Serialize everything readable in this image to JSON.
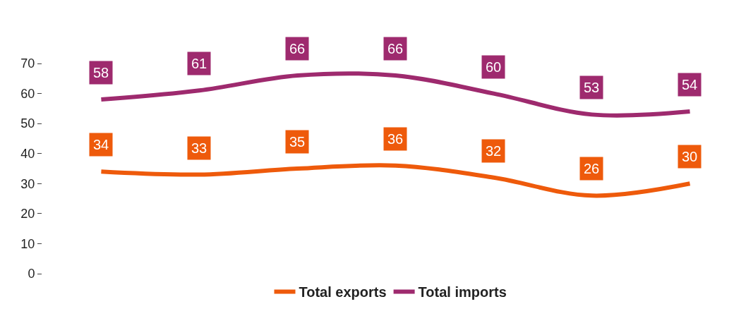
{
  "chart_data": {
    "type": "line",
    "categories": [
      null,
      null,
      null,
      null,
      null,
      null,
      null
    ],
    "series": [
      {
        "name": "Total exports",
        "color": "#ee5a0b",
        "values": [
          34,
          33,
          35,
          36,
          32,
          26,
          30
        ]
      },
      {
        "name": "Total imports",
        "color": "#9e2a6e",
        "values": [
          58,
          61,
          66,
          66,
          60,
          53,
          54
        ]
      }
    ],
    "ylim": [
      0,
      70
    ],
    "yticks": [
      0,
      10,
      20,
      30,
      40,
      50,
      60,
      70
    ],
    "legend": "bottom",
    "data_labels": true,
    "marker": "none",
    "line_style": "solid"
  }
}
